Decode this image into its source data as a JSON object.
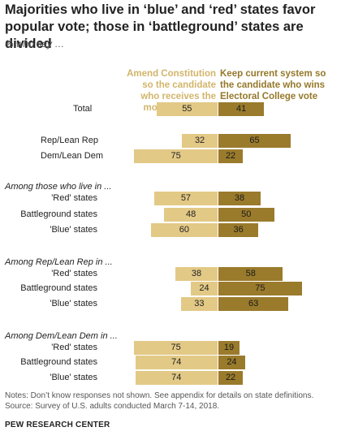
{
  "header": {
    "title": "Majorities who live in ‘blue’ and ‘red’ states favor popular vote; those in ‘battleground’ states are divided",
    "subtitle": "% who say …"
  },
  "footer": {
    "notes": "Notes: Don’t know responses not shown. See appendix for details on state definitions.",
    "source": "Source: Survey of U.S. adults conducted March 7-14, 2018.",
    "org": "PEW RESEARCH CENTER"
  },
  "chart_data": {
    "type": "bar",
    "orientation": "horizontal-diverging",
    "series": [
      {
        "name": "Amend Constitution so the candidate who receives the most votes wins",
        "color": "#e3c986",
        "values": [
          55,
          32,
          75,
          57,
          48,
          60,
          38,
          24,
          33,
          75,
          74,
          74
        ]
      },
      {
        "name": "Keep current system so the candidate who wins Electoral College vote wins",
        "color": "#9a7b2c",
        "values": [
          41,
          65,
          22,
          38,
          50,
          36,
          58,
          75,
          63,
          19,
          24,
          22
        ]
      }
    ],
    "sections": [
      {
        "heading": "",
        "rows": [
          0
        ]
      },
      {
        "heading": "",
        "rows": [
          1,
          2
        ]
      },
      {
        "heading": "Among those who live in ...",
        "rows": [
          3,
          4,
          5
        ]
      },
      {
        "heading": "Among Rep/Lean Rep in ...",
        "rows": [
          6,
          7,
          8
        ]
      },
      {
        "heading": "Among Dem/Lean Dem in ...",
        "rows": [
          9,
          10,
          11
        ]
      }
    ],
    "categories": [
      "Total",
      "Rep/Lean Rep",
      "Dem/Lean Dem",
      "'Red' states",
      "Battleground states",
      "'Blue' states",
      "'Red' states",
      "Battleground states",
      "'Blue' states",
      "'Red' states",
      "Battleground states",
      "'Blue' states"
    ]
  }
}
